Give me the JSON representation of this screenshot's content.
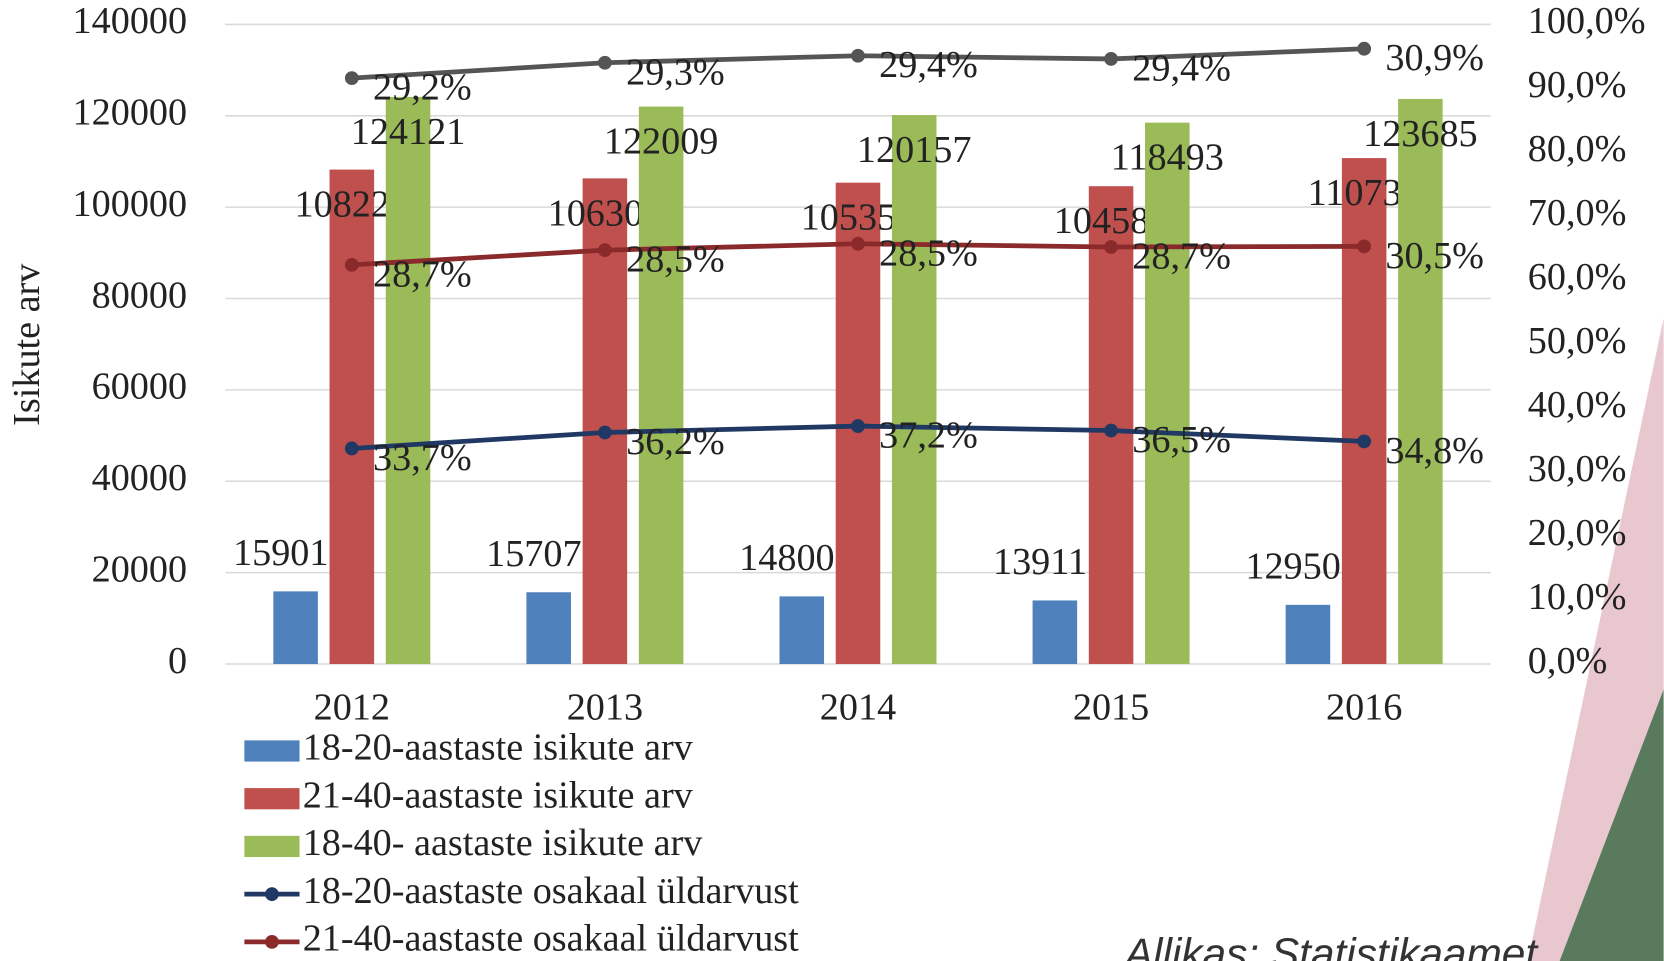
{
  "chart_data": {
    "type": "bar-line",
    "y_label": "Isikute arv",
    "categories": [
      "2012",
      "2013",
      "2014",
      "2015",
      "2016"
    ],
    "ylim": [
      0,
      140000
    ],
    "yticks": [
      0,
      20000,
      40000,
      60000,
      80000,
      100000,
      120000,
      140000
    ],
    "y2lim": [
      0,
      100
    ],
    "y2ticks": [
      {
        "value": 0,
        "label": "0,0%"
      },
      {
        "value": 10,
        "label": "10,0%"
      },
      {
        "value": 20,
        "label": "20,0%"
      },
      {
        "value": 30,
        "label": "30,0%"
      },
      {
        "value": 40,
        "label": "40,0%"
      },
      {
        "value": 50,
        "label": "50,0%"
      },
      {
        "value": 60,
        "label": "60,0%"
      },
      {
        "value": 70,
        "label": "70,0%"
      },
      {
        "value": 80,
        "label": "80,0%"
      },
      {
        "value": 90,
        "label": "90,0%"
      },
      {
        "value": 100,
        "label": "100,0%"
      }
    ],
    "grid": true,
    "stacked_lines": true,
    "series": [
      {
        "name": "18-20-aastaste isikute arv",
        "type": "bar",
        "color": "#4f81bd",
        "values": [
          15901,
          15707,
          14800,
          13911,
          12950
        ]
      },
      {
        "name": "21-40-aastaste isikute arv",
        "type": "bar",
        "color": "#c0504d",
        "values": [
          108220,
          106302,
          105357,
          104582,
          110735
        ]
      },
      {
        "name": "18-40- aastaste isikute arv",
        "type": "bar",
        "color": "#9bbb59",
        "values": [
          124121,
          122009,
          120157,
          118493,
          123685
        ]
      },
      {
        "name": "18-20-aastaste osakaal üldarvust",
        "type": "line",
        "axis": "y2",
        "color": "#1f3864",
        "values": [
          33.7,
          36.2,
          37.2,
          36.5,
          34.8
        ],
        "value_labels": [
          "33,7%",
          "36,2%",
          "37,2%",
          "36,5%",
          "34,8%"
        ]
      },
      {
        "name": "21-40-aastaste osakaal üldarvust",
        "type": "line",
        "axis": "y2",
        "color": "#8b2a2a",
        "values": [
          28.7,
          28.5,
          28.5,
          28.7,
          30.5
        ],
        "value_labels": [
          "28,7%",
          "28,5%",
          "28,5%",
          "28,7%",
          "30,5%"
        ]
      },
      {
        "type": "line",
        "axis": "y2",
        "color": "#555555",
        "values": [
          29.2,
          29.3,
          29.4,
          29.4,
          30.9
        ],
        "value_labels": [
          "29,2%",
          "29,3%",
          "29,4%",
          "29,4%",
          "30,9%"
        ]
      }
    ],
    "source": "Allikas: Statistikaamet"
  }
}
